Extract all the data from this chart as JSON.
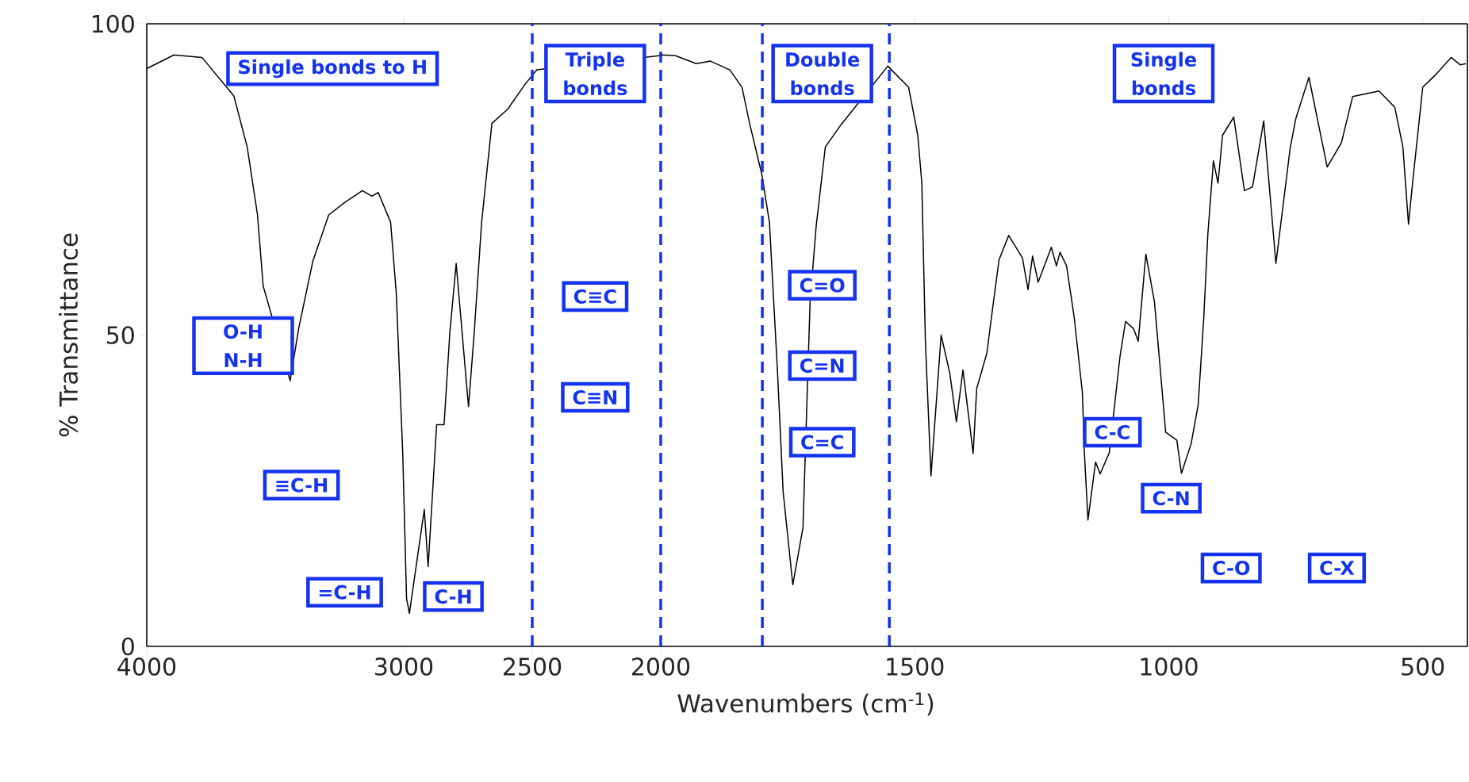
{
  "chart_data": [
    {
      "type": "line",
      "ylabel": "% Transmittance",
      "xlim": [
        4000,
        2000
      ],
      "ylim": [
        0,
        100
      ],
      "xticks": [
        4000,
        3000,
        2500,
        2000
      ],
      "yticks": [
        0,
        50,
        100
      ],
      "series": [
        {
          "color": "#000000",
          "x": [
            4000,
            3894,
            3785,
            3661,
            3609,
            3569,
            3547,
            3442,
            3409,
            3354,
            3292,
            3230,
            3161,
            3124,
            3099,
            3051,
            3029,
            3004,
            2989,
            2978,
            2920,
            2905,
            2872,
            2843,
            2821,
            2796,
            2748,
            2726,
            2697,
            2657,
            2595,
            2526,
            2482,
            2000
          ],
          "values": [
            92.8,
            95,
            94.6,
            88.4,
            80.2,
            69.3,
            57.9,
            42.7,
            51,
            61.8,
            69.3,
            71.3,
            73.2,
            72.3,
            72.9,
            68.1,
            56.7,
            31.1,
            7.7,
            5.3,
            22,
            12.8,
            35.6,
            35.6,
            50.2,
            61.5,
            38.5,
            50.2,
            68.1,
            84,
            86.3,
            90.4,
            92.6,
            94.9
          ]
        }
      ],
      "ref_lines": [
        {
          "axis": "x",
          "value": 2500,
          "color": "#1433f0",
          "line_style": "dashed"
        },
        {
          "axis": "x",
          "value": 2000,
          "color": "#1433f0",
          "line_style": "dashed"
        }
      ],
      "annotations": [
        "Single bonds to H",
        "Triple bonds",
        "O-H N-H",
        "≡C-H",
        "=C-H",
        "C-H",
        "C≡C",
        "C≡N"
      ]
    },
    {
      "type": "line",
      "xlabel": "Wavenumbers (cm$^{-1}$)",
      "xlim": [
        2000,
        412
      ],
      "ylim": [
        0,
        100
      ],
      "xticks": [
        1500,
        1000,
        500
      ],
      "yticks": [
        0,
        50,
        100
      ],
      "tick_labels": "x",
      "series": [
        {
          "color": "#000000",
          "x": [
            2000,
            1972,
            1930,
            1902,
            1864,
            1840,
            1825,
            1801,
            1786,
            1770,
            1759,
            1740,
            1720,
            1706,
            1694,
            1676,
            1645,
            1553,
            1512,
            1494,
            1486,
            1479,
            1468,
            1448,
            1431,
            1418,
            1405,
            1385,
            1378,
            1358,
            1347,
            1334,
            1315,
            1288,
            1277,
            1268,
            1257,
            1231,
            1221,
            1214,
            1201,
            1186,
            1170,
            1166,
            1159,
            1144,
            1135,
            1117,
            1096,
            1085,
            1069,
            1060,
            1045,
            1028,
            1006,
            984,
            975,
            956,
            942,
            931,
            923,
            912,
            903,
            894,
            872,
            851,
            835,
            813,
            789,
            761,
            750,
            724,
            688,
            660,
            638,
            586,
            555,
            539,
            528,
            520,
            500,
            476,
            444,
            426,
            415
          ],
          "values": [
            95,
            94.9,
            93.6,
            94,
            92.6,
            89.8,
            84,
            75.8,
            68.1,
            43.9,
            24.8,
            9.9,
            19.1,
            55.3,
            67.5,
            80.2,
            83.8,
            93.2,
            89.8,
            82.1,
            74.4,
            49,
            27.4,
            50,
            43.9,
            36.1,
            44.4,
            31,
            41.4,
            47.1,
            54.1,
            62.1,
            66,
            62.4,
            57.3,
            62.7,
            58.5,
            64.1,
            61.1,
            63.3,
            61.1,
            52.8,
            40.8,
            31.1,
            20.3,
            29.6,
            27.7,
            31.1,
            46.5,
            52.2,
            51,
            49,
            63,
            55.3,
            34.4,
            33.1,
            27.8,
            32.5,
            38.8,
            52.8,
            66.2,
            78,
            74.4,
            82.1,
            85,
            73.2,
            73.8,
            84.4,
            61.5,
            80,
            84.7,
            91.4,
            77,
            80.9,
            88.3,
            89.2,
            86.6,
            80.2,
            67.8,
            74.4,
            89.8,
            91.7,
            94.6,
            93.4,
            93.6
          ]
        }
      ],
      "ref_lines": [
        {
          "axis": "x",
          "value": 1800,
          "color": "#1433f0",
          "line_style": "dashed"
        },
        {
          "axis": "x",
          "value": 1550,
          "color": "#1433f0",
          "line_style": "dashed"
        }
      ],
      "annotations": [
        "Double bonds",
        "Single bonds",
        "C=O",
        "C=N",
        "C=C",
        "C-C",
        "C-N",
        "C-O",
        "C-X"
      ]
    }
  ]
}
